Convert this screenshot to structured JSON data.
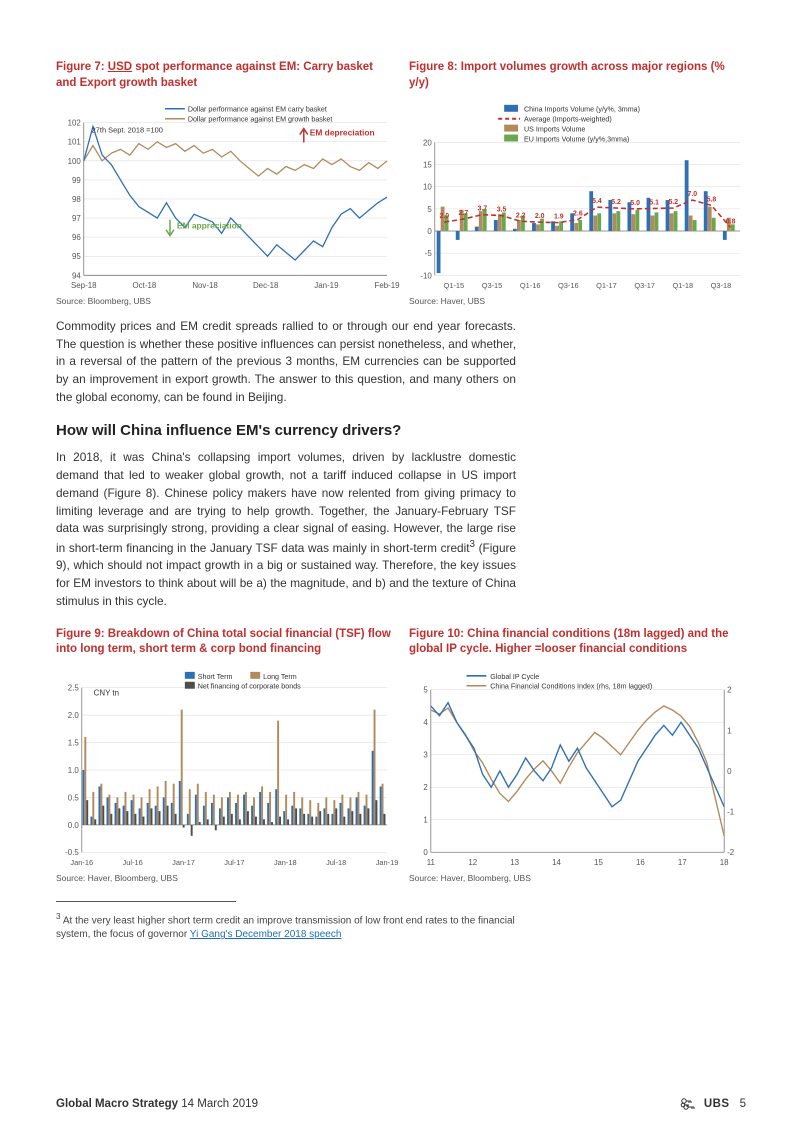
{
  "figure7": {
    "title_pre": "Figure 7: ",
    "title_usd": "USD",
    "title_rest": " spot performance against EM: Carry basket and Export growth basket",
    "source": "Source:  Bloomberg, UBS",
    "type": "line",
    "note_top": "27th Sept. 2018 =100",
    "annotation_up": "EM depreciation",
    "annotation_down": "EM appreciation",
    "legend": {
      "s1": "Dollar performance against EM carry basket",
      "s2": "Dollar performance against EM growth basket"
    },
    "colors": {
      "s1": "#2f6fb4",
      "s2": "#b28a5b",
      "axis": "#7a7a7a",
      "grid": "#d9d9d9",
      "arrow_up": "#c0302f",
      "arrow_down": "#6aa84f"
    },
    "x_labels": [
      "Sep-18",
      "Oct-18",
      "Nov-18",
      "Dec-18",
      "Jan-19",
      "Feb-19"
    ],
    "y_min": 94,
    "y_max": 102,
    "y_step": 1,
    "series1": [
      100.0,
      101.8,
      100.3,
      99.8,
      99.0,
      98.2,
      97.6,
      97.3,
      97.0,
      97.8,
      97.0,
      96.5,
      97.2,
      97.0,
      96.8,
      96.2,
      97.0,
      96.5,
      96.0,
      95.5,
      95.0,
      95.6,
      95.2,
      94.8,
      95.3,
      95.8,
      95.5,
      96.5,
      97.2,
      97.5,
      97.0,
      97.4,
      97.8,
      98.1
    ],
    "series2": [
      100.0,
      100.8,
      100.0,
      100.4,
      100.6,
      100.3,
      100.9,
      100.6,
      101.0,
      100.7,
      100.9,
      100.5,
      100.8,
      100.4,
      100.6,
      100.2,
      100.5,
      100.0,
      99.6,
      99.2,
      99.6,
      99.3,
      99.7,
      99.5,
      99.8,
      99.6,
      100.1,
      99.8,
      100.1,
      99.7,
      99.5,
      99.9,
      99.6,
      100.0
    ]
  },
  "figure8": {
    "title": "Figure 8: Import volumes growth across major regions (% y/y)",
    "source": "Source:  Haver, UBS",
    "type": "grouped-bar",
    "legend": {
      "s1": "China Imports Volume (y/y%, 3mma)",
      "s2": "Average (Imports-weighted)",
      "s3": "US Imports Volume",
      "s4": "EU Imports Volume (y/y%,3mma)"
    },
    "colors": {
      "s1": "#2f6fb4",
      "s2": "#c0302f",
      "s3": "#b28a5b",
      "s4": "#6aa84f",
      "axis": "#7a7a7a",
      "grid": "#d9d9d9"
    },
    "x_labels": [
      "Q1-15",
      "Q3-15",
      "Q1-16",
      "Q3-16",
      "Q1-17",
      "Q3-17",
      "Q1-18",
      "Q3-18"
    ],
    "y_min": -10,
    "y_max": 20,
    "y_step": 5,
    "avg_values": [
      2.0,
      2.7,
      3.7,
      3.5,
      2.2,
      2.0,
      1.9,
      2.6,
      5.4,
      5.2,
      5.0,
      5.1,
      5.2,
      7.0,
      5.8,
      0.8
    ],
    "china": [
      -9.5,
      -2.0,
      1.0,
      2.5,
      0.5,
      1.8,
      2.2,
      4.0,
      9.0,
      7.0,
      6.5,
      7.5,
      7.0,
      16.0,
      9.0,
      -2.0
    ],
    "us": [
      5.5,
      4.8,
      4.5,
      3.8,
      2.5,
      1.5,
      1.2,
      1.8,
      3.5,
      4.0,
      3.8,
      3.5,
      4.0,
      3.5,
      5.5,
      3.0
    ],
    "eu": [
      3.5,
      4.0,
      5.0,
      4.2,
      3.5,
      2.8,
      2.2,
      2.5,
      4.0,
      4.5,
      4.8,
      4.2,
      4.5,
      2.5,
      3.0,
      1.5
    ]
  },
  "para1": "Commodity prices and EM credit spreads rallied to or through our end year forecasts. The question is whether these positive influences can persist nonetheless, and whether, in a reversal of the pattern of the previous 3 months, EM currencies can be supported by an improvement in export growth. The answer to this question, and many others on the global economy, can be found in Beijing.",
  "heading1": "How will China influence EM's currency drivers?",
  "para2_a": "In 2018, it was China's collapsing import volumes, driven by lacklustre domestic demand that led to weaker global growth, not a tariff induced collapse in US import demand (Figure 8). Chinese policy makers have now relented from giving primacy to limiting leverage and are trying to help growth. Together, the January-February TSF data was surprisingly strong, providing a clear signal of easing. However, the large rise in short-term financing in the January TSF data was mainly in short-term credit",
  "para2_sup": "3",
  "para2_b": " (Figure 9), which should not impact growth in a big or sustained way. Therefore, the key issues for EM investors to think about will be a) the magnitude, and b) and the texture of China stimulus in this cycle.",
  "figure9": {
    "title": "Figure 9: Breakdown of China total social financial (TSF) flow into long term, short term & corp bond financing",
    "source": "Source:  Haver, Bloomberg, UBS",
    "type": "grouped-bar",
    "ylabel": "CNY tn",
    "legend": {
      "s1": "Short Term",
      "s2": "Long Term",
      "s3": "Net financing of corporate bonds"
    },
    "colors": {
      "s1": "#2f6fb4",
      "s2": "#b28a5b",
      "s3": "#4d4d4d",
      "axis": "#7a7a7a",
      "grid": "#d9d9d9"
    },
    "x_labels": [
      "Jan-16",
      "Jul-16",
      "Jan-17",
      "Jul-17",
      "Jan-18",
      "Jul-18",
      "Jan-19"
    ],
    "y_min": -0.5,
    "y_max": 2.5,
    "y_step": 0.5,
    "short": [
      1.0,
      0.15,
      0.7,
      0.5,
      0.4,
      0.35,
      0.45,
      0.3,
      0.4,
      0.35,
      0.5,
      0.4,
      0.8,
      0.2,
      0.55,
      0.35,
      0.4,
      0.3,
      0.5,
      0.4,
      0.55,
      0.35,
      0.6,
      0.4,
      0.65,
      0.25,
      0.35,
      0.3,
      0.2,
      0.15,
      0.3,
      0.2,
      0.4,
      0.3,
      0.5,
      0.35,
      1.35,
      0.7
    ],
    "long": [
      1.6,
      0.6,
      0.75,
      0.55,
      0.5,
      0.6,
      0.55,
      0.5,
      0.65,
      0.7,
      0.8,
      0.75,
      2.1,
      0.65,
      0.75,
      0.6,
      0.55,
      0.5,
      0.6,
      0.55,
      0.6,
      0.5,
      0.7,
      0.6,
      1.9,
      0.55,
      0.6,
      0.5,
      0.45,
      0.4,
      0.5,
      0.45,
      0.55,
      0.5,
      0.6,
      0.55,
      2.1,
      0.75
    ],
    "bonds": [
      0.45,
      0.1,
      0.35,
      0.2,
      0.3,
      0.25,
      0.2,
      0.15,
      0.3,
      0.25,
      0.35,
      0.2,
      -0.05,
      -0.2,
      0.05,
      0.1,
      -0.1,
      0.15,
      0.2,
      0.1,
      0.25,
      0.15,
      0.1,
      0.05,
      0.15,
      0.1,
      0.3,
      0.2,
      0.15,
      0.25,
      0.2,
      0.3,
      0.15,
      0.25,
      0.2,
      0.3,
      0.45,
      0.2
    ]
  },
  "figure10": {
    "title": "Figure 10: China financial conditions (18m lagged) and the global IP cycle. Higher =looser financial conditions",
    "source": "Source:  Haver, Bloomberg, UBS",
    "type": "line",
    "legend": {
      "s1": "Global IP Cycle",
      "s2": "China Financial Conditions Index (rhs, 18m lagged)"
    },
    "colors": {
      "s1": "#2f6fb4",
      "s2": "#b28a5b",
      "axis": "#7a7a7a",
      "grid": "#d9d9d9"
    },
    "x_labels": [
      "11",
      "12",
      "13",
      "14",
      "15",
      "16",
      "17",
      "18"
    ],
    "yl_min": 0,
    "yl_max": 5,
    "yl_step": 1,
    "yr_min": -2,
    "yr_max": 2,
    "yr_step": 1,
    "series1": [
      4.5,
      4.2,
      4.6,
      4.0,
      3.6,
      3.2,
      2.4,
      2.0,
      2.5,
      2.0,
      2.4,
      2.9,
      2.5,
      2.2,
      2.6,
      3.3,
      2.8,
      3.2,
      2.6,
      2.2,
      1.8,
      1.4,
      1.6,
      2.2,
      2.8,
      3.2,
      3.6,
      3.9,
      3.6,
      4.0,
      3.6,
      3.2,
      2.6,
      2.0,
      1.4
    ],
    "series2": [
      1.5,
      1.4,
      1.55,
      1.2,
      0.9,
      0.5,
      0.2,
      -0.2,
      -0.55,
      -0.75,
      -0.5,
      -0.2,
      0.05,
      0.25,
      0.0,
      -0.3,
      0.1,
      0.45,
      0.7,
      0.95,
      0.8,
      0.6,
      0.4,
      0.7,
      1.0,
      1.25,
      1.45,
      1.6,
      1.5,
      1.35,
      1.1,
      0.7,
      0.2,
      -0.7,
      -1.6
    ]
  },
  "footnote_sup": "3",
  "footnote_a": " At the very least higher short term credit an improve transmission of low front end rates to the financial system, the focus of governor ",
  "footnote_link": "Yi Gang's December 2018 speech",
  "footer_left_strong": "Global Macro Strategy",
  "footer_left_date": "   14 March 2019",
  "footer_logo": "UBS",
  "footer_page": "5"
}
